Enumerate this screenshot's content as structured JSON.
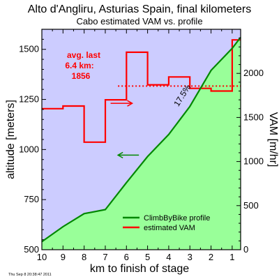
{
  "chart_data": {
    "type": "line",
    "title": "Alto d'Angliru, Asturias Spain, final kilometers",
    "subtitle": "Cabo estimated VAM vs. profile",
    "xlabel": "km to finish of stage",
    "ylabel_left": "altitude [meters]",
    "ylabel_right": "VAM [m/hr]",
    "footer": "Thu Sep  8 20:38:47 2011",
    "x_reversed": true,
    "xlim": [
      10,
      0.6
    ],
    "ylim_left": [
      500,
      1600
    ],
    "ylim_right": [
      0,
      2500
    ],
    "x_ticks": [
      10,
      9,
      8,
      7,
      6,
      5,
      4,
      3,
      2,
      1
    ],
    "y_ticks_left": [
      500,
      750,
      1000,
      1250,
      1500
    ],
    "y_ticks_right": [
      0,
      500,
      1000,
      1500,
      2000
    ],
    "colors": {
      "background": "#ccccff",
      "profile_fill": "#99ff99",
      "profile_line": "#008800",
      "vam": "#ff0000"
    },
    "series": [
      {
        "name": "ClimbByBike profile",
        "axis": "left",
        "style": "line-filled",
        "x": [
          10,
          9,
          8,
          7,
          6,
          5,
          4,
          3,
          2,
          1,
          0.6
        ],
        "y": [
          540,
          615,
          680,
          700,
          835,
          965,
          1075,
          1215,
          1395,
          1505,
          1560
        ]
      },
      {
        "name": "estimated VAM",
        "axis": "right",
        "style": "step",
        "steps": [
          {
            "x_from": 10,
            "x_to": 9,
            "value": 1600
          },
          {
            "x_from": 9,
            "x_to": 8,
            "value": 1630
          },
          {
            "x_from": 8,
            "x_to": 7,
            "value": 1220
          },
          {
            "x_from": 7,
            "x_to": 6,
            "value": 1700
          },
          {
            "x_from": 6,
            "x_to": 5,
            "value": 2240
          },
          {
            "x_from": 5,
            "x_to": 4,
            "value": 1870
          },
          {
            "x_from": 4,
            "x_to": 3,
            "value": 1960
          },
          {
            "x_from": 3,
            "x_to": 2,
            "value": 1830
          },
          {
            "x_from": 2,
            "x_to": 1,
            "value": 1800
          },
          {
            "x_from": 1,
            "x_to": 0.6,
            "value": 2380
          }
        ]
      }
    ],
    "average_vam": {
      "value": 1856,
      "x_range": [
        6.4,
        0.6
      ],
      "label_lines": [
        "avg. last",
        "6.4 km:",
        "1856"
      ]
    },
    "annotations": {
      "gradient": "17.5%",
      "gradient_anchor": {
        "x": 3.25,
        "y": 1200
      },
      "arrow_right_anchor": {
        "x": 6.75,
        "y": 1660
      },
      "arrow_left_anchor": {
        "x": 6.4,
        "y": 1000
      }
    },
    "legend": {
      "position": "bottom-right",
      "items": [
        {
          "label": "ClimbByBike profile",
          "color": "#008800"
        },
        {
          "label": "estimated VAM",
          "color": "#ff0000"
        }
      ]
    }
  }
}
